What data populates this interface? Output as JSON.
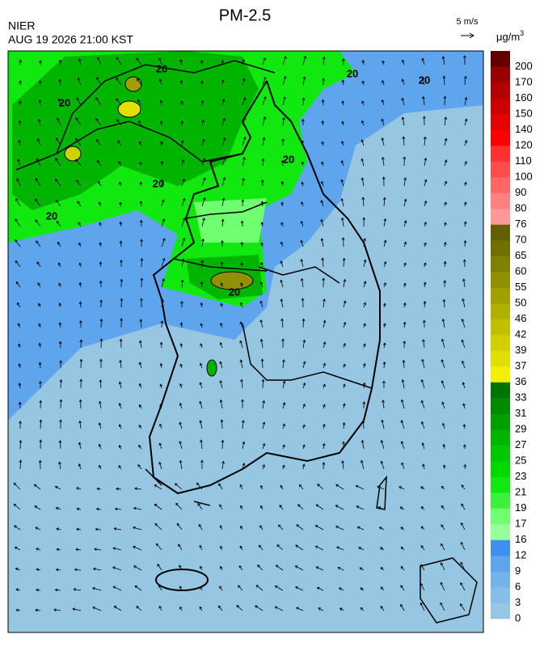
{
  "header": {
    "title": "PM-2.5",
    "agency": "NIER",
    "timestamp": "AUG 19 2026 21:00 KST",
    "wind_scale": "5 m/s"
  },
  "colorbar": {
    "unit": "μg/m",
    "unit_exponent": "3",
    "ticks": [
      0,
      3,
      6,
      9,
      12,
      16,
      17,
      19,
      21,
      23,
      25,
      27,
      29,
      31,
      33,
      36,
      37,
      39,
      42,
      46,
      50,
      55,
      60,
      65,
      70,
      76,
      80,
      90,
      100,
      110,
      120,
      140,
      150,
      160,
      170,
      200
    ],
    "colors": [
      "#97c6e3",
      "#86bdea",
      "#74b2ec",
      "#5ea5ee",
      "#3d8ff0",
      "#99ff99",
      "#70ff70",
      "#3cf03c",
      "#10e810",
      "#00d800",
      "#00c800",
      "#00b400",
      "#009e00",
      "#008a00",
      "#007400",
      "#f0f000",
      "#e0e000",
      "#d0d000",
      "#c0c000",
      "#b0b000",
      "#a0a000",
      "#909000",
      "#808000",
      "#707000",
      "#606000",
      "#ff9999",
      "#ff8080",
      "#ff6666",
      "#ff4c4c",
      "#ff3030",
      "#ff0000",
      "#e60000",
      "#cc0000",
      "#b30000",
      "#990000",
      "#660000"
    ]
  },
  "contour_labels": [
    "20",
    "20",
    "20",
    "20",
    "20",
    "20",
    "20",
    "20"
  ]
}
